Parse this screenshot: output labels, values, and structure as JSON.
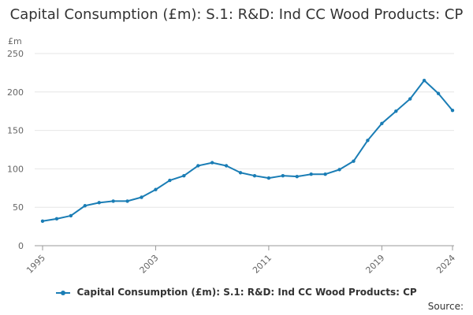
{
  "colors": {
    "series": "#1a7db5",
    "grid": "#e6e6e6",
    "axis": "#999999"
  },
  "chart_data": {
    "type": "line",
    "title": "Capital Consumption (£m): S.1: R&D: Ind CC Wood Products: CP",
    "ylabel": "£m",
    "xlabel": "",
    "ylim": [
      0,
      250
    ],
    "yticks": [
      0,
      50,
      100,
      150,
      200,
      250
    ],
    "xticks": [
      "1995",
      "2003",
      "2011",
      "2019",
      "2024"
    ],
    "legend": "bottom-center",
    "grid": true,
    "series": [
      {
        "name": "Capital Consumption (£m): S.1: R&D: Ind CC Wood Products: CP",
        "x": [
          1995,
          1996,
          1997,
          1998,
          1999,
          2000,
          2001,
          2002,
          2003,
          2004,
          2005,
          2006,
          2007,
          2008,
          2009,
          2010,
          2011,
          2012,
          2013,
          2014,
          2015,
          2016,
          2017,
          2018,
          2019,
          2020,
          2021,
          2022,
          2023,
          2024
        ],
        "values": [
          32,
          35,
          39,
          52,
          56,
          58,
          58,
          63,
          73,
          85,
          91,
          104,
          108,
          104,
          95,
          91,
          88,
          91,
          90,
          93,
          93,
          99,
          110,
          137,
          159,
          175,
          191,
          215,
          198,
          176
        ]
      }
    ]
  },
  "source_label": "Source:"
}
